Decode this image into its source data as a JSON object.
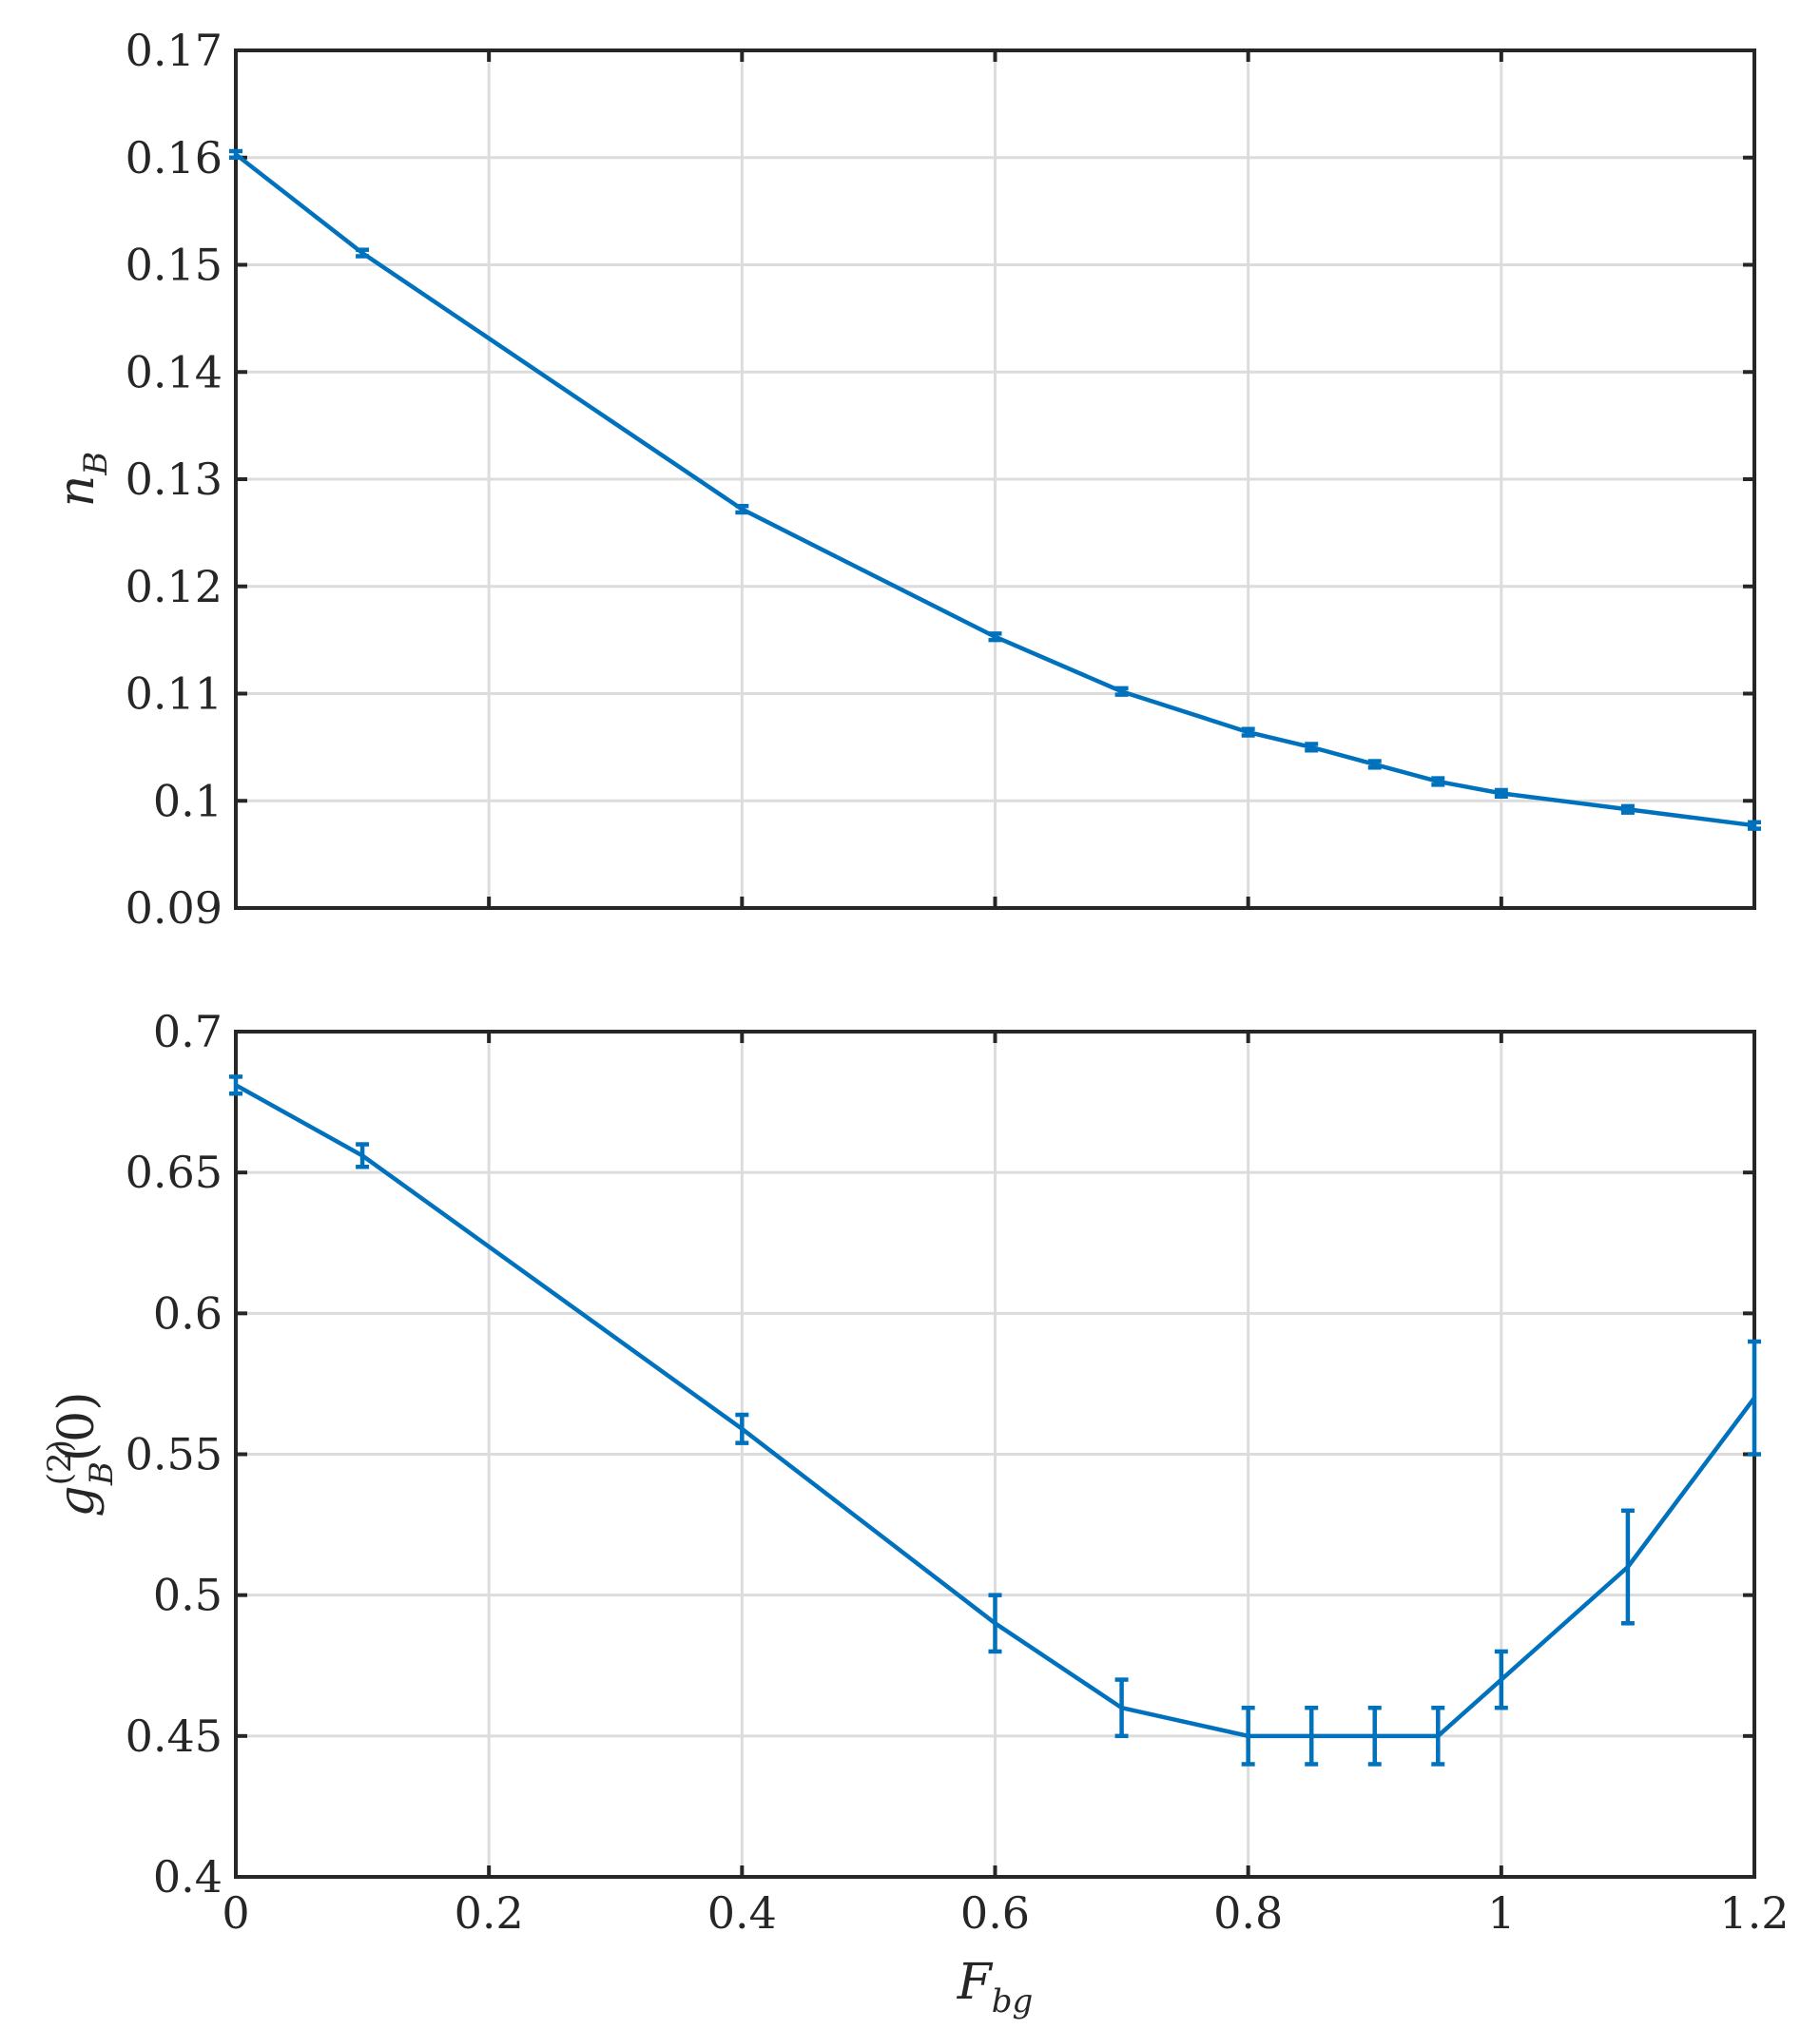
{
  "colors": {
    "series": "#0072BD",
    "axes": "#262626",
    "grid": "#dcdcdc"
  },
  "chart_data": [
    {
      "type": "line",
      "ylabel": {
        "main": "n",
        "sub": "B"
      },
      "xlabel": "",
      "xlim": [
        0,
        1.2
      ],
      "ylim": [
        0.09,
        0.17
      ],
      "grid": true,
      "x_ticks": [
        0,
        0.2,
        0.4,
        0.6,
        0.8,
        1,
        1.2
      ],
      "x_tick_labels": [],
      "y_ticks": [
        0.09,
        0.1,
        0.11,
        0.12,
        0.13,
        0.14,
        0.15,
        0.16,
        0.17
      ],
      "y_tick_labels": [
        "0.09",
        "0.1",
        "0.11",
        "0.12",
        "0.13",
        "0.14",
        "0.15",
        "0.16",
        "0.17"
      ],
      "series": [
        {
          "x": [
            0,
            0.1,
            0.4,
            0.6,
            0.7,
            0.8,
            0.85,
            0.9,
            0.95,
            1.0,
            1.1,
            1.2
          ],
          "y": [
            0.1603,
            0.1511,
            0.1272,
            0.1153,
            0.1102,
            0.1064,
            0.105,
            0.1034,
            0.1018,
            0.1007,
            0.0992,
            0.0977
          ],
          "err": [
            0.0003,
            0.0003,
            0.0003,
            0.0003,
            0.0003,
            0.0003,
            0.0003,
            0.0003,
            0.0003,
            0.0003,
            0.0003,
            0.0003
          ]
        }
      ]
    },
    {
      "type": "line",
      "ylabel": {
        "main": "g",
        "sup": "(2)",
        "sub": "B",
        "after": "(0)"
      },
      "xlabel": {
        "main": "F",
        "sub": "bg"
      },
      "xlim": [
        0,
        1.2
      ],
      "ylim": [
        0.4,
        0.7
      ],
      "grid": true,
      "x_ticks": [
        0,
        0.2,
        0.4,
        0.6,
        0.8,
        1,
        1.2
      ],
      "x_tick_labels": [
        "0",
        "0.2",
        "0.4",
        "0.6",
        "0.8",
        "1",
        "1.2"
      ],
      "y_ticks": [
        0.4,
        0.45,
        0.5,
        0.55,
        0.6,
        0.65,
        0.7
      ],
      "y_tick_labels": [
        "0.4",
        "0.45",
        "0.5",
        "0.55",
        "0.6",
        "0.65",
        "0.7"
      ],
      "series": [
        {
          "x": [
            0,
            0.1,
            0.4,
            0.6,
            0.7,
            0.8,
            0.85,
            0.9,
            0.95,
            1.0,
            1.1,
            1.2
          ],
          "y": [
            0.681,
            0.656,
            0.559,
            0.49,
            0.46,
            0.45,
            0.45,
            0.45,
            0.45,
            0.47,
            0.51,
            0.57
          ],
          "err": [
            0.003,
            0.004,
            0.005,
            0.01,
            0.01,
            0.01,
            0.01,
            0.01,
            0.01,
            0.01,
            0.02,
            0.02
          ]
        }
      ]
    }
  ]
}
